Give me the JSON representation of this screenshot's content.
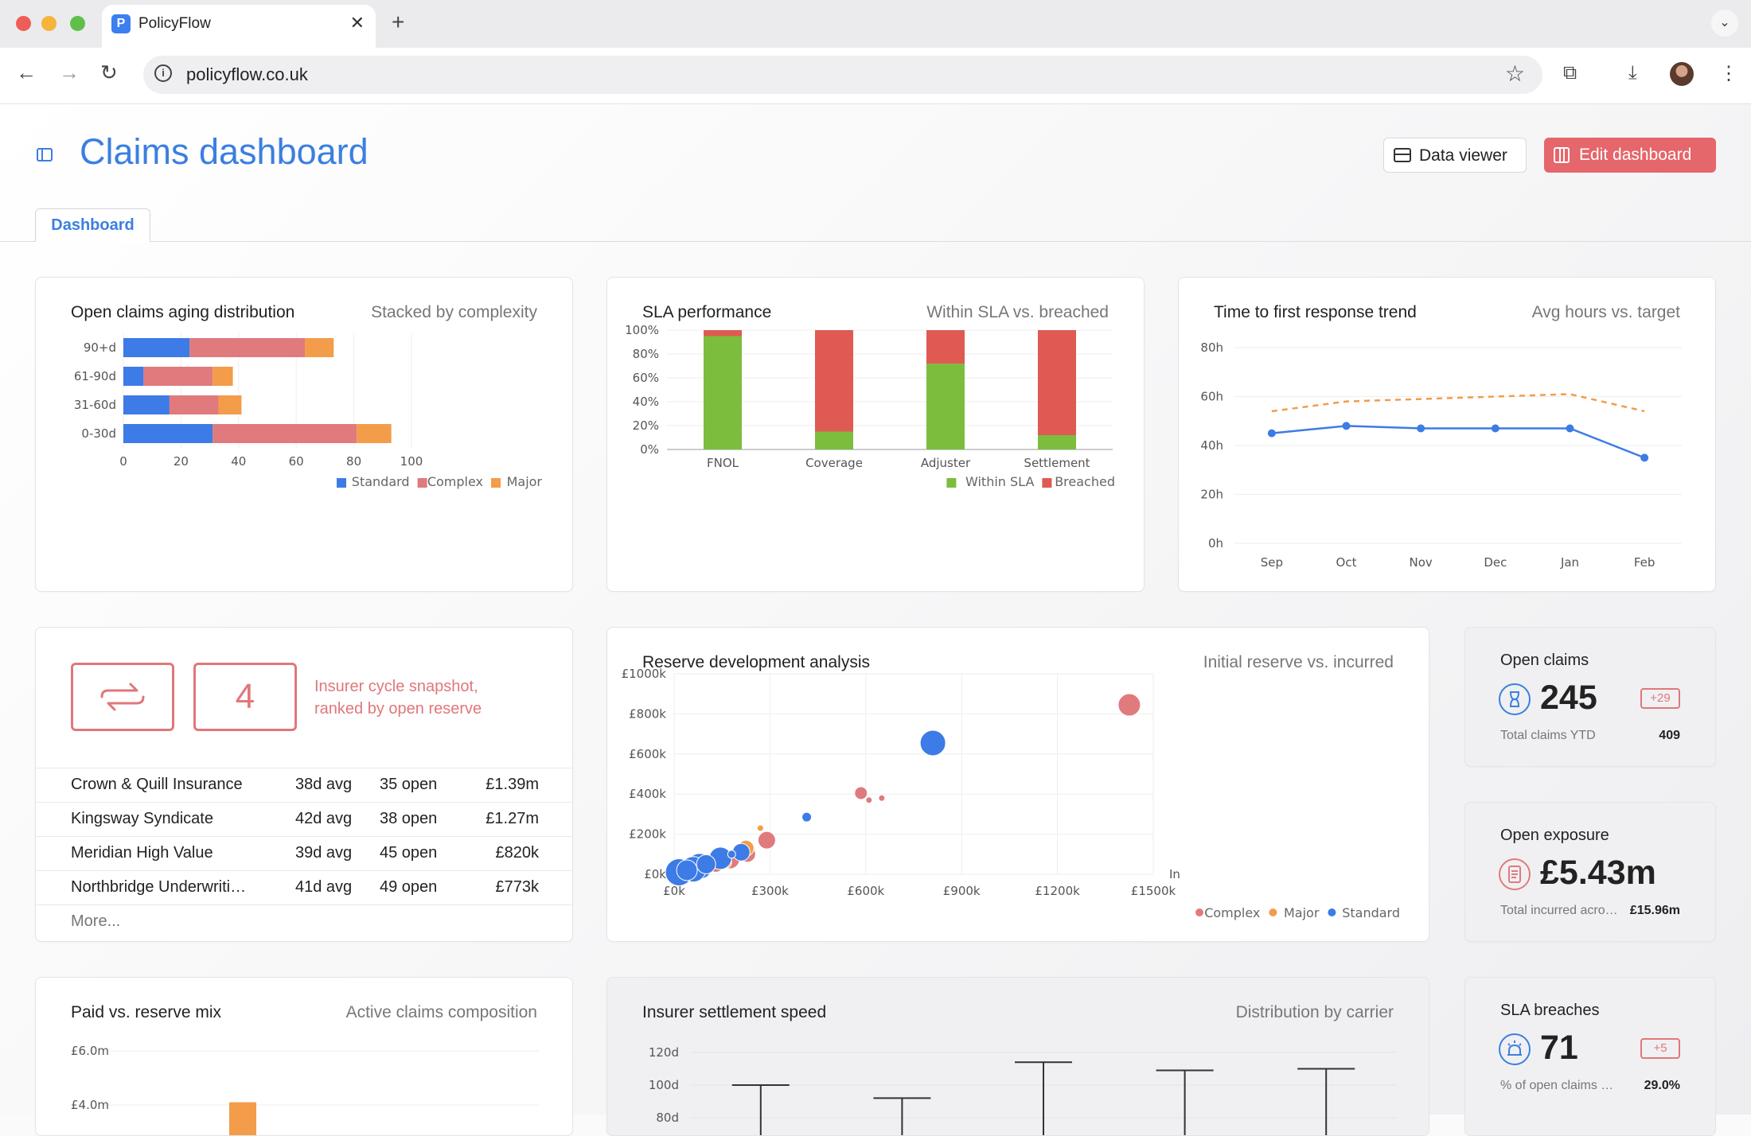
{
  "browser": {
    "tab_title": "PolicyFlow",
    "tab_favicon": "P",
    "url": "policyflow.co.uk"
  },
  "header": {
    "title": "Claims dashboard",
    "data_viewer_label": "Data viewer",
    "edit_dashboard_label": "Edit dashboard",
    "tabs": [
      {
        "label": "Dashboard",
        "active": true
      }
    ]
  },
  "colors": {
    "accent": "#3b7fe0",
    "standard": "#3d7be6",
    "complex": "#e07a7d",
    "major": "#f39c4a",
    "within_sla": "#7cbd3e",
    "breached": "#df5a53",
    "edit_button": "#e5666b"
  },
  "aging": {
    "title": "Open claims aging distribution",
    "subtitle": "Stacked by complexity",
    "chart_data": {
      "type": "bar",
      "orientation": "horizontal",
      "stacked": true,
      "categories": [
        "90+d",
        "61-90d",
        "31-60d",
        "0-30d"
      ],
      "series": [
        {
          "name": "Standard",
          "values": [
            23,
            7,
            16,
            31
          ]
        },
        {
          "name": "Complex",
          "values": [
            40,
            24,
            17,
            50
          ]
        },
        {
          "name": "Major",
          "values": [
            10,
            7,
            8,
            12
          ]
        }
      ],
      "xlim": [
        0,
        100
      ],
      "xticks": [
        "0",
        "20",
        "40",
        "60",
        "80",
        "100"
      ],
      "legend": "bottom-right"
    }
  },
  "sla": {
    "title": "SLA performance",
    "subtitle": "Within SLA vs. breached",
    "chart_data": {
      "type": "bar",
      "stacked": true,
      "categories": [
        "FNOL",
        "Coverage",
        "Adjuster",
        "Settlement"
      ],
      "series": [
        {
          "name": "Within SLA",
          "values": [
            95,
            15,
            72,
            12
          ]
        },
        {
          "name": "Breached",
          "values": [
            5,
            85,
            28,
            88
          ]
        }
      ],
      "ylim": [
        0,
        100
      ],
      "yticks": [
        "0%",
        "20%",
        "40%",
        "60%",
        "80%",
        "100%"
      ],
      "legend": "bottom-right"
    }
  },
  "response": {
    "title": "Time to first response trend",
    "subtitle": "Avg hours vs. target",
    "chart_data": {
      "type": "line",
      "categories": [
        "Sep",
        "Oct",
        "Nov",
        "Dec",
        "Jan",
        "Feb"
      ],
      "series": [
        {
          "values": [
            45,
            48,
            47,
            47,
            47,
            35
          ],
          "style": "solid",
          "color": "#3d7be6"
        },
        {
          "values": [
            54,
            58,
            59,
            60,
            61,
            54
          ],
          "style": "dashed",
          "color": "#f39c4a"
        }
      ],
      "ylim": [
        0,
        80
      ],
      "yticks": [
        "0h",
        "20h",
        "40h",
        "60h",
        "80h"
      ]
    }
  },
  "insurers": {
    "icon": "cycle-icon",
    "count": "4",
    "title": "Insurer cycle snapshot, ranked by open reserve",
    "rows": [
      {
        "name": "Crown & Quill Insurance",
        "avg": "38d avg",
        "open": "35 open",
        "reserve": "£1.39m"
      },
      {
        "name": "Kingsway Syndicate",
        "avg": "42d avg",
        "open": "38 open",
        "reserve": "£1.27m"
      },
      {
        "name": "Meridian High Value",
        "avg": "39d avg",
        "open": "45 open",
        "reserve": "£820k"
      },
      {
        "name": "Northbridge Underwriti…",
        "avg": "41d avg",
        "open": "49 open",
        "reserve": "£773k"
      }
    ],
    "more_label": "More..."
  },
  "reserve": {
    "title": "Reserve development analysis",
    "subtitle": "Initial reserve vs. incurred",
    "chart_data": {
      "type": "scatter",
      "xlabel": "In",
      "xlim": [
        0,
        1500
      ],
      "ylim": [
        0,
        1000
      ],
      "xticks": [
        "£0k",
        "£300k",
        "£600k",
        "£900k",
        "£1200k",
        "£1500k"
      ],
      "yticks": [
        "£0k",
        "£200k",
        "£400k",
        "£600k",
        "£800k",
        "£1000k"
      ],
      "legend": "bottom-right",
      "series": [
        {
          "name": "Complex",
          "color": "#e07a7d",
          "points": [
            [
              1425,
              845,
              14
            ],
            [
              585,
              405,
              8
            ],
            [
              610,
              370,
              4
            ],
            [
              650,
              380,
              4
            ],
            [
              290,
              170,
              11
            ],
            [
              230,
              100,
              10
            ],
            [
              175,
              75,
              12
            ],
            [
              130,
              50,
              10
            ]
          ]
        },
        {
          "name": "Major",
          "color": "#f39c4a",
          "points": [
            [
              270,
              230,
              4
            ],
            [
              225,
              130,
              10
            ],
            [
              160,
              60,
              8
            ]
          ]
        },
        {
          "name": "Standard",
          "color": "#3d7be6",
          "points": [
            [
              810,
              655,
              16
            ],
            [
              415,
              285,
              6
            ],
            [
              210,
              110,
              11
            ],
            [
              145,
              80,
              14
            ],
            [
              80,
              40,
              16
            ],
            [
              60,
              25,
              16
            ],
            [
              15,
              10,
              17
            ],
            [
              40,
              20,
              13
            ],
            [
              100,
              50,
              12
            ],
            [
              180,
              100,
              5
            ]
          ]
        }
      ]
    }
  },
  "kpis": [
    {
      "title": "Open claims",
      "icon": "hourglass-icon",
      "value": "245",
      "delta": "+29",
      "footer_label": "Total claims YTD",
      "footer_value": "409",
      "icon_color": "#3b7fe0"
    },
    {
      "title": "Open exposure",
      "icon": "receipt-icon",
      "value": "£5.43m",
      "delta": "",
      "footer_label": "Total incurred across claims",
      "footer_value": "£15.96m",
      "icon_color": "#e07a7d"
    },
    {
      "title": "SLA breaches",
      "icon": "alarm-icon",
      "value": "71",
      "delta": "+5",
      "footer_label": "% of open claims breached",
      "footer_value": "29.0%",
      "icon_color": "#3b7fe0"
    }
  ],
  "paid_mix": {
    "title": "Paid vs. reserve mix",
    "subtitle": "Active claims composition",
    "chart_data": {
      "type": "bar",
      "yticks": [
        "£6.0m",
        "£4.0m"
      ],
      "ylim_visible": [
        4.0,
        6.0
      ],
      "values": [
        4.1
      ],
      "color": "#f39c4a"
    }
  },
  "settlement": {
    "title": "Insurer settlement speed",
    "subtitle": "Distribution by carrier",
    "chart_data": {
      "type": "box",
      "yticks": [
        "120d",
        "100d",
        "80d"
      ],
      "whisker_tops": [
        100,
        92,
        114,
        109,
        110
      ]
    }
  }
}
